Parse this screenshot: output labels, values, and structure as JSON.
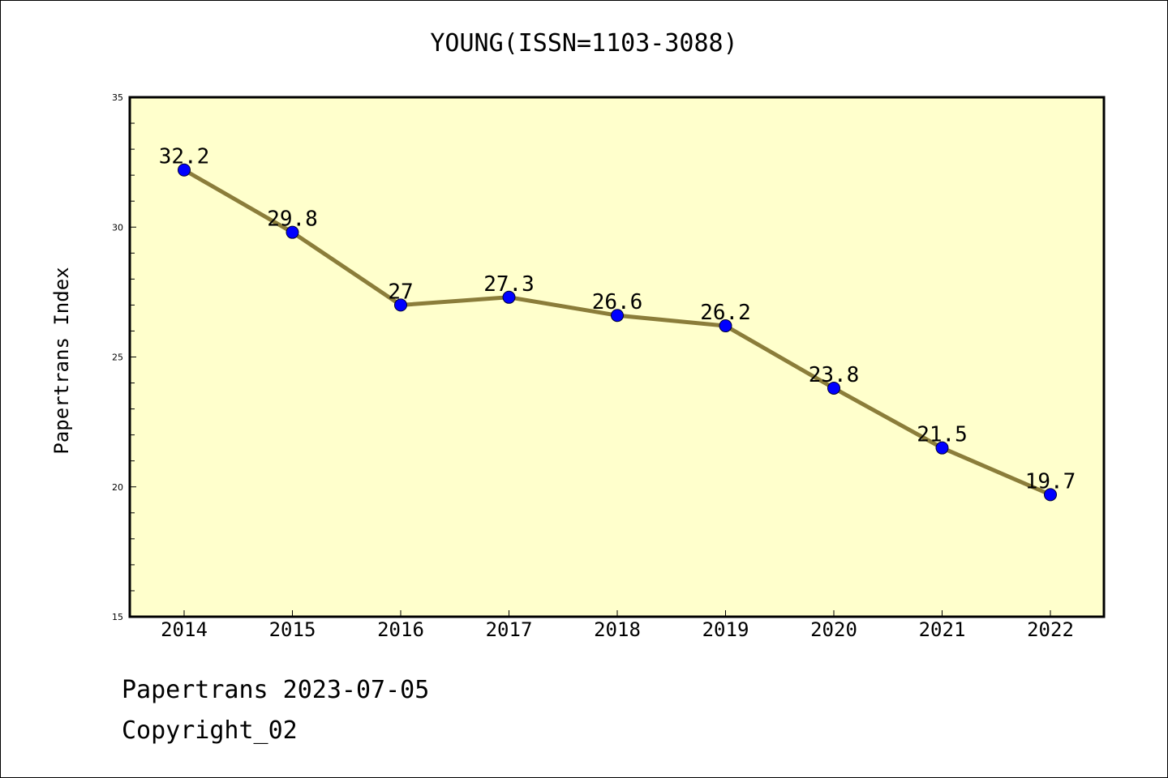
{
  "title": "YOUNG(ISSN=1103-3088)",
  "footer": {
    "line1": "Papertrans 2023-07-05",
    "line2": "Copyright_02"
  },
  "colors": {
    "plot_background": "#ffffcc",
    "line": "#8b7d3a",
    "marker": "#0000ff"
  },
  "chart_data": {
    "type": "line",
    "title": "YOUNG(ISSN=1103-3088)",
    "xlabel": "",
    "ylabel": "Papertrans Index",
    "categories": [
      "2014",
      "2015",
      "2016",
      "2017",
      "2018",
      "2019",
      "2020",
      "2021",
      "2022"
    ],
    "values": [
      32.2,
      29.8,
      27,
      27.3,
      26.6,
      26.2,
      23.8,
      21.5,
      19.7
    ],
    "data_labels": [
      "32.2",
      "29.8",
      "27",
      "27.3",
      "26.6",
      "26.2",
      "23.8",
      "21.5",
      "19.7"
    ],
    "ylim": [
      15,
      35
    ],
    "yticks": [
      15,
      20,
      25,
      30,
      35
    ],
    "grid": false,
    "legend": "none"
  }
}
